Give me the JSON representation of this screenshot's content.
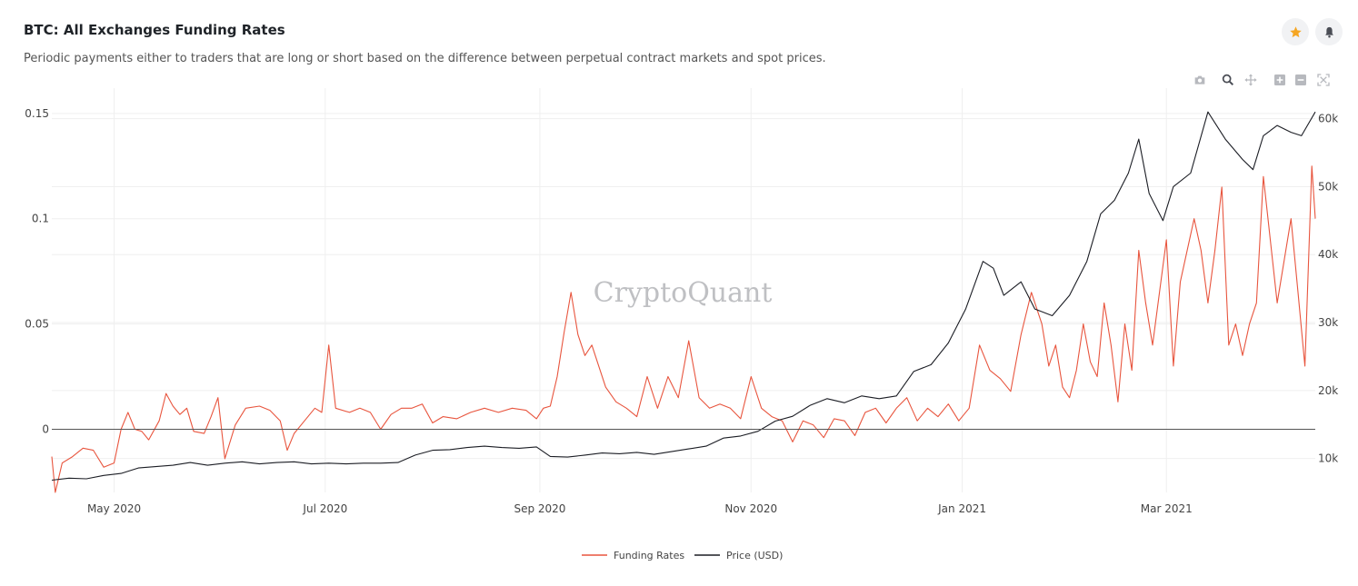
{
  "header": {
    "title": "BTC: All Exchanges Funding Rates",
    "subtitle": "Periodic payments either to traders that are long or short based on the difference between perpetual contract markets and spot prices."
  },
  "actions": {
    "favorite_icon": "star-icon",
    "alert_icon": "bell-icon"
  },
  "toolbar": {
    "icons": [
      "camera-icon",
      "zoom-icon",
      "pan-icon",
      "zoom-in-icon",
      "zoom-out-icon",
      "autoscale-icon"
    ]
  },
  "watermark": "CryptoQuant",
  "colors": {
    "funding": "#e8553e",
    "price": "#1b1d24",
    "grid": "#efefef",
    "zero": "#555555",
    "star": "#f5a623"
  },
  "chart_data": {
    "type": "line",
    "x_range": [
      "2020-04-13",
      "2021-04-13"
    ],
    "x_ticks": [
      {
        "date": "2020-05-01",
        "label": "May 2020"
      },
      {
        "date": "2020-07-01",
        "label": "Jul 2020"
      },
      {
        "date": "2020-09-01",
        "label": "Sep 2020"
      },
      {
        "date": "2020-11-01",
        "label": "Nov 2020"
      },
      {
        "date": "2021-01-01",
        "label": "Jan 2021"
      },
      {
        "date": "2021-03-01",
        "label": "Mar 2021"
      }
    ],
    "y_left": {
      "range": [
        -0.03,
        0.162
      ],
      "ticks": [
        {
          "v": 0,
          "label": "0"
        },
        {
          "v": 0.05,
          "label": "0.05"
        },
        {
          "v": 0.1,
          "label": "0.1"
        },
        {
          "v": 0.15,
          "label": "0.15"
        }
      ]
    },
    "y_right": {
      "range": [
        5000,
        64500
      ],
      "ticks": [
        {
          "v": 10000,
          "label": "10k"
        },
        {
          "v": 20000,
          "label": "20k"
        },
        {
          "v": 30000,
          "label": "30k"
        },
        {
          "v": 40000,
          "label": "40k"
        },
        {
          "v": 50000,
          "label": "50k"
        },
        {
          "v": 60000,
          "label": "60k"
        }
      ]
    },
    "legend": {
      "placement": "bottom-center"
    },
    "series": [
      {
        "name": "Funding Rates",
        "axis": "left",
        "points": [
          [
            "2020-04-13",
            -0.013
          ],
          [
            "2020-04-14",
            -0.03
          ],
          [
            "2020-04-16",
            -0.016
          ],
          [
            "2020-04-19",
            -0.013
          ],
          [
            "2020-04-22",
            -0.009
          ],
          [
            "2020-04-25",
            -0.01
          ],
          [
            "2020-04-28",
            -0.018
          ],
          [
            "2020-05-01",
            -0.016
          ],
          [
            "2020-05-03",
            0.0
          ],
          [
            "2020-05-05",
            0.008
          ],
          [
            "2020-05-07",
            0.0
          ],
          [
            "2020-05-09",
            -0.001
          ],
          [
            "2020-05-11",
            -0.005
          ],
          [
            "2020-05-14",
            0.004
          ],
          [
            "2020-05-16",
            0.017
          ],
          [
            "2020-05-18",
            0.011
          ],
          [
            "2020-05-20",
            0.007
          ],
          [
            "2020-05-22",
            0.01
          ],
          [
            "2020-05-24",
            -0.001
          ],
          [
            "2020-05-27",
            -0.002
          ],
          [
            "2020-05-29",
            0.006
          ],
          [
            "2020-05-31",
            0.015
          ],
          [
            "2020-06-02",
            -0.014
          ],
          [
            "2020-06-05",
            0.002
          ],
          [
            "2020-06-08",
            0.01
          ],
          [
            "2020-06-12",
            0.011
          ],
          [
            "2020-06-15",
            0.009
          ],
          [
            "2020-06-18",
            0.004
          ],
          [
            "2020-06-20",
            -0.01
          ],
          [
            "2020-06-22",
            -0.002
          ],
          [
            "2020-06-25",
            0.004
          ],
          [
            "2020-06-28",
            0.01
          ],
          [
            "2020-06-30",
            0.008
          ],
          [
            "2020-07-02",
            0.04
          ],
          [
            "2020-07-04",
            0.01
          ],
          [
            "2020-07-08",
            0.008
          ],
          [
            "2020-07-11",
            0.01
          ],
          [
            "2020-07-14",
            0.008
          ],
          [
            "2020-07-17",
            0.0
          ],
          [
            "2020-07-20",
            0.007
          ],
          [
            "2020-07-23",
            0.01
          ],
          [
            "2020-07-26",
            0.01
          ],
          [
            "2020-07-29",
            0.012
          ],
          [
            "2020-08-01",
            0.003
          ],
          [
            "2020-08-04",
            0.006
          ],
          [
            "2020-08-08",
            0.005
          ],
          [
            "2020-08-12",
            0.008
          ],
          [
            "2020-08-16",
            0.01
          ],
          [
            "2020-08-20",
            0.008
          ],
          [
            "2020-08-24",
            0.01
          ],
          [
            "2020-08-28",
            0.009
          ],
          [
            "2020-08-31",
            0.005
          ],
          [
            "2020-09-02",
            0.01
          ],
          [
            "2020-09-04",
            0.011
          ],
          [
            "2020-09-06",
            0.025
          ],
          [
            "2020-09-08",
            0.046
          ],
          [
            "2020-09-10",
            0.065
          ],
          [
            "2020-09-12",
            0.045
          ],
          [
            "2020-09-14",
            0.035
          ],
          [
            "2020-09-16",
            0.04
          ],
          [
            "2020-09-18",
            0.03
          ],
          [
            "2020-09-20",
            0.02
          ],
          [
            "2020-09-23",
            0.013
          ],
          [
            "2020-09-26",
            0.01
          ],
          [
            "2020-09-29",
            0.006
          ],
          [
            "2020-10-02",
            0.025
          ],
          [
            "2020-10-05",
            0.01
          ],
          [
            "2020-10-08",
            0.025
          ],
          [
            "2020-10-11",
            0.015
          ],
          [
            "2020-10-14",
            0.042
          ],
          [
            "2020-10-17",
            0.015
          ],
          [
            "2020-10-20",
            0.01
          ],
          [
            "2020-10-23",
            0.012
          ],
          [
            "2020-10-26",
            0.01
          ],
          [
            "2020-10-29",
            0.005
          ],
          [
            "2020-11-01",
            0.025
          ],
          [
            "2020-11-04",
            0.01
          ],
          [
            "2020-11-07",
            0.006
          ],
          [
            "2020-11-10",
            0.004
          ],
          [
            "2020-11-13",
            -0.006
          ],
          [
            "2020-11-16",
            0.004
          ],
          [
            "2020-11-19",
            0.002
          ],
          [
            "2020-11-22",
            -0.004
          ],
          [
            "2020-11-25",
            0.005
          ],
          [
            "2020-11-28",
            0.004
          ],
          [
            "2020-12-01",
            -0.003
          ],
          [
            "2020-12-04",
            0.008
          ],
          [
            "2020-12-07",
            0.01
          ],
          [
            "2020-12-10",
            0.003
          ],
          [
            "2020-12-13",
            0.01
          ],
          [
            "2020-12-16",
            0.015
          ],
          [
            "2020-12-19",
            0.004
          ],
          [
            "2020-12-22",
            0.01
          ],
          [
            "2020-12-25",
            0.006
          ],
          [
            "2020-12-28",
            0.012
          ],
          [
            "2020-12-31",
            0.004
          ],
          [
            "2021-01-03",
            0.01
          ],
          [
            "2021-01-06",
            0.04
          ],
          [
            "2021-01-09",
            0.028
          ],
          [
            "2021-01-12",
            0.024
          ],
          [
            "2021-01-15",
            0.018
          ],
          [
            "2021-01-18",
            0.045
          ],
          [
            "2021-01-21",
            0.065
          ],
          [
            "2021-01-24",
            0.05
          ],
          [
            "2021-01-26",
            0.03
          ],
          [
            "2021-01-28",
            0.04
          ],
          [
            "2021-01-30",
            0.02
          ],
          [
            "2021-02-01",
            0.015
          ],
          [
            "2021-02-03",
            0.028
          ],
          [
            "2021-02-05",
            0.05
          ],
          [
            "2021-02-07",
            0.032
          ],
          [
            "2021-02-09",
            0.025
          ],
          [
            "2021-02-11",
            0.06
          ],
          [
            "2021-02-13",
            0.04
          ],
          [
            "2021-02-15",
            0.013
          ],
          [
            "2021-02-17",
            0.05
          ],
          [
            "2021-02-19",
            0.028
          ],
          [
            "2021-02-21",
            0.085
          ],
          [
            "2021-02-23",
            0.06
          ],
          [
            "2021-02-25",
            0.04
          ],
          [
            "2021-02-27",
            0.065
          ],
          [
            "2021-03-01",
            0.09
          ],
          [
            "2021-03-03",
            0.03
          ],
          [
            "2021-03-05",
            0.07
          ],
          [
            "2021-03-07",
            0.085
          ],
          [
            "2021-03-09",
            0.1
          ],
          [
            "2021-03-11",
            0.085
          ],
          [
            "2021-03-13",
            0.06
          ],
          [
            "2021-03-15",
            0.085
          ],
          [
            "2021-03-17",
            0.115
          ],
          [
            "2021-03-19",
            0.04
          ],
          [
            "2021-03-21",
            0.05
          ],
          [
            "2021-03-23",
            0.035
          ],
          [
            "2021-03-25",
            0.05
          ],
          [
            "2021-03-27",
            0.06
          ],
          [
            "2021-03-29",
            0.12
          ],
          [
            "2021-03-31",
            0.09
          ],
          [
            "2021-04-02",
            0.06
          ],
          [
            "2021-04-04",
            0.08
          ],
          [
            "2021-04-06",
            0.1
          ],
          [
            "2021-04-08",
            0.065
          ],
          [
            "2021-04-10",
            0.03
          ],
          [
            "2021-04-12",
            0.125
          ],
          [
            "2021-04-13",
            0.1
          ]
        ]
      },
      {
        "name": "Price (USD)",
        "axis": "right",
        "points": [
          [
            "2020-04-13",
            6800
          ],
          [
            "2020-04-18",
            7100
          ],
          [
            "2020-04-23",
            7000
          ],
          [
            "2020-04-28",
            7500
          ],
          [
            "2020-05-03",
            7800
          ],
          [
            "2020-05-08",
            8600
          ],
          [
            "2020-05-13",
            8800
          ],
          [
            "2020-05-18",
            9000
          ],
          [
            "2020-05-23",
            9400
          ],
          [
            "2020-05-28",
            9000
          ],
          [
            "2020-06-02",
            9300
          ],
          [
            "2020-06-07",
            9500
          ],
          [
            "2020-06-12",
            9200
          ],
          [
            "2020-06-17",
            9400
          ],
          [
            "2020-06-22",
            9500
          ],
          [
            "2020-06-27",
            9200
          ],
          [
            "2020-07-02",
            9300
          ],
          [
            "2020-07-07",
            9200
          ],
          [
            "2020-07-12",
            9300
          ],
          [
            "2020-07-17",
            9300
          ],
          [
            "2020-07-22",
            9400
          ],
          [
            "2020-07-27",
            10500
          ],
          [
            "2020-08-01",
            11200
          ],
          [
            "2020-08-06",
            11300
          ],
          [
            "2020-08-11",
            11600
          ],
          [
            "2020-08-16",
            11800
          ],
          [
            "2020-08-21",
            11600
          ],
          [
            "2020-08-26",
            11500
          ],
          [
            "2020-08-31",
            11700
          ],
          [
            "2020-09-04",
            10300
          ],
          [
            "2020-09-09",
            10200
          ],
          [
            "2020-09-14",
            10500
          ],
          [
            "2020-09-19",
            10800
          ],
          [
            "2020-09-24",
            10700
          ],
          [
            "2020-09-29",
            10900
          ],
          [
            "2020-10-04",
            10600
          ],
          [
            "2020-10-09",
            11000
          ],
          [
            "2020-10-14",
            11400
          ],
          [
            "2020-10-19",
            11800
          ],
          [
            "2020-10-24",
            13000
          ],
          [
            "2020-10-29",
            13300
          ],
          [
            "2020-11-03",
            14000
          ],
          [
            "2020-11-08",
            15500
          ],
          [
            "2020-11-13",
            16200
          ],
          [
            "2020-11-18",
            17800
          ],
          [
            "2020-11-23",
            18800
          ],
          [
            "2020-11-28",
            18200
          ],
          [
            "2020-12-03",
            19200
          ],
          [
            "2020-12-08",
            18800
          ],
          [
            "2020-12-13",
            19200
          ],
          [
            "2020-12-18",
            22800
          ],
          [
            "2020-12-23",
            23800
          ],
          [
            "2020-12-28",
            27000
          ],
          [
            "2021-01-02",
            32000
          ],
          [
            "2021-01-07",
            39000
          ],
          [
            "2021-01-10",
            38000
          ],
          [
            "2021-01-13",
            34000
          ],
          [
            "2021-01-18",
            36000
          ],
          [
            "2021-01-22",
            32000
          ],
          [
            "2021-01-27",
            31000
          ],
          [
            "2021-02-01",
            34000
          ],
          [
            "2021-02-06",
            39000
          ],
          [
            "2021-02-10",
            46000
          ],
          [
            "2021-02-14",
            48000
          ],
          [
            "2021-02-18",
            52000
          ],
          [
            "2021-02-21",
            57000
          ],
          [
            "2021-02-24",
            49000
          ],
          [
            "2021-02-28",
            45000
          ],
          [
            "2021-03-03",
            50000
          ],
          [
            "2021-03-08",
            52000
          ],
          [
            "2021-03-13",
            61000
          ],
          [
            "2021-03-18",
            57000
          ],
          [
            "2021-03-23",
            54000
          ],
          [
            "2021-03-26",
            52500
          ],
          [
            "2021-03-29",
            57500
          ],
          [
            "2021-04-02",
            59000
          ],
          [
            "2021-04-06",
            58000
          ],
          [
            "2021-04-09",
            57500
          ],
          [
            "2021-04-13",
            61000
          ]
        ]
      }
    ]
  }
}
